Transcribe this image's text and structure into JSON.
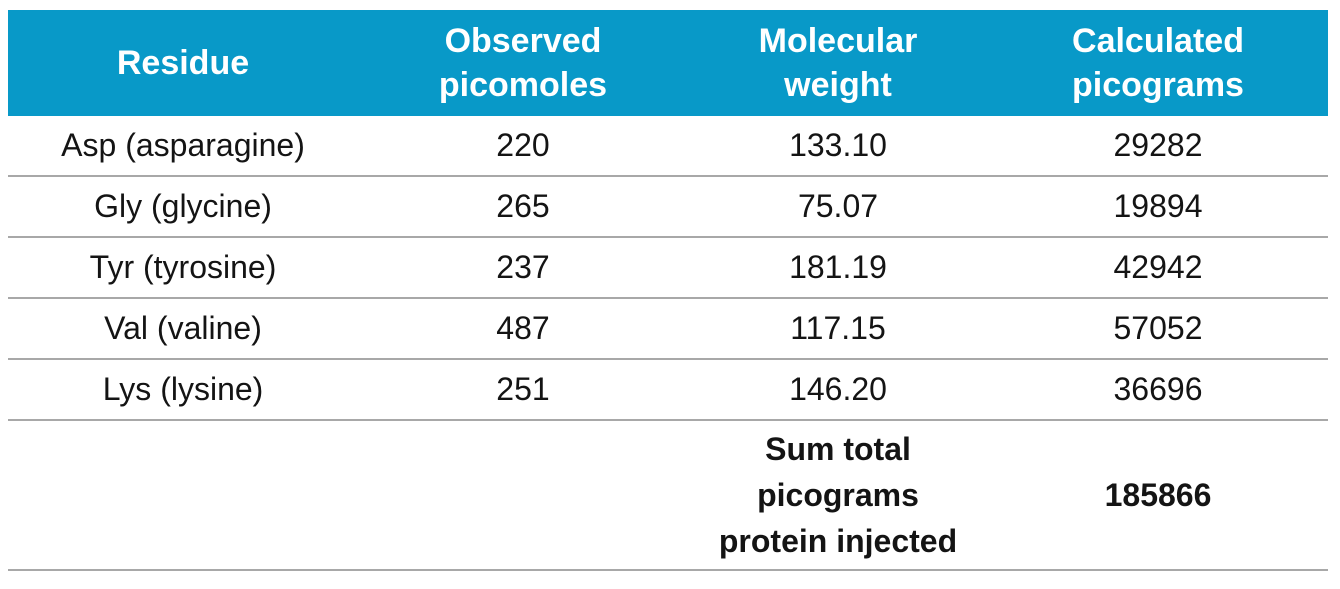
{
  "table": {
    "headers": [
      {
        "lines": [
          "Residue"
        ]
      },
      {
        "lines": [
          "Observed",
          "picomoles"
        ]
      },
      {
        "lines": [
          "Molecular",
          "weight"
        ]
      },
      {
        "lines": [
          "Calculated",
          "picograms"
        ]
      }
    ],
    "rows": [
      [
        "Asp (asparagine)",
        "220",
        "133.10",
        "29282"
      ],
      [
        "Gly (glycine)",
        "265",
        "75.07",
        "19894"
      ],
      [
        "Tyr (tyrosine)",
        "237",
        "181.19",
        "42942"
      ],
      [
        "Val (valine)",
        "487",
        "117.15",
        "57052"
      ],
      [
        "Lys (lysine)",
        "251",
        "146.20",
        "36696"
      ]
    ],
    "total": {
      "label_lines": [
        "Sum total",
        "picograms",
        "protein injected"
      ],
      "value": "185866"
    }
  },
  "colors": {
    "header_bg": "#0899c8",
    "header_text": "#ffffff",
    "body_text": "#141414",
    "divider": "#a8a8a8"
  }
}
